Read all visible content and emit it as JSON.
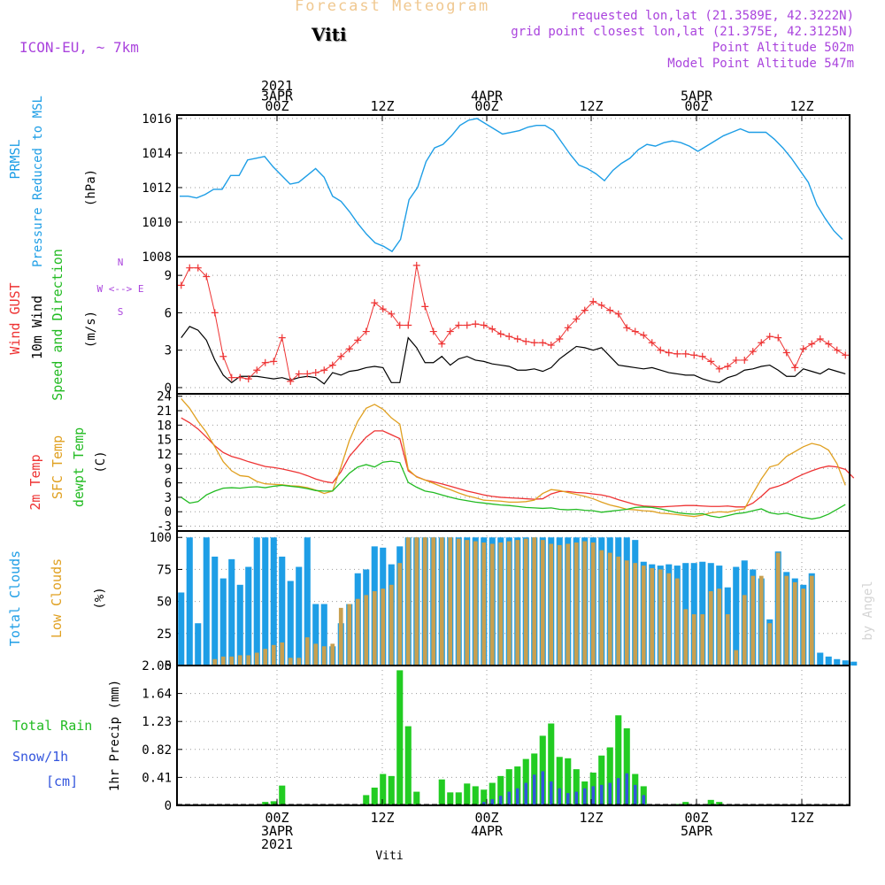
{
  "header": {
    "title": "Forecast Meteogram",
    "location": "Viti",
    "model": "ICON-EU, ~ 7km",
    "requested": "requested lon,lat (21.3589E, 42.3222N)",
    "gridpoint": "grid point closest lon,lat (21.375E, 42.3125N)",
    "point_altitude": "Point Altitude 502m",
    "model_altitude": "Model Point Altitude 547m"
  },
  "footer": {
    "location": "Viti",
    "watermark": "by Angel"
  },
  "colors": {
    "pressure": "#1e9ee6",
    "gust": "#ee3333",
    "wind": "#000000",
    "t2m": "#ee3333",
    "sfc": "#e0a020",
    "dew": "#22bb22",
    "total_clouds": "#1e9ee6",
    "low_clouds": "#c8a050",
    "rain": "#22cc22",
    "snow": "#3355dd",
    "label_purple": "#aa44dd",
    "label_green": "#22bb22",
    "label_cyan": "#1e9ee6"
  },
  "chart_data": [
    {
      "type": "line",
      "panel_labels": [
        "PRMSL",
        "Pressure Reduced to MSL",
        "(hPa)"
      ],
      "ylim": [
        1008,
        1016.2
      ],
      "yticks": [
        1008,
        1010,
        1012,
        1014,
        1016
      ],
      "x": [
        0,
        1,
        2,
        3,
        4,
        5,
        6,
        7,
        8,
        9,
        10,
        11,
        12,
        13,
        14,
        15,
        16,
        17,
        18,
        19,
        20,
        21,
        22,
        23,
        24,
        25,
        26,
        27,
        28,
        29,
        30,
        31,
        32,
        33,
        34,
        35,
        36,
        37,
        38,
        39,
        40,
        41,
        42,
        43,
        44,
        45,
        46,
        47,
        48,
        49,
        50,
        51,
        52,
        53,
        54,
        55,
        56,
        57,
        58,
        59,
        60,
        61,
        62,
        63,
        64,
        65,
        66,
        67,
        68,
        69,
        70,
        71,
        72,
        73,
        74,
        75,
        76,
        77,
        78
      ],
      "series": [
        {
          "values": [
            1011.5,
            1011.5,
            1011.4,
            1011.6,
            1011.9,
            1011.9,
            1012.7,
            1012.7,
            1013.6,
            1013.7,
            1013.8,
            1013.2,
            1012.7,
            1012.2,
            1012.3,
            1012.7,
            1013.1,
            1012.6,
            1011.5,
            1011.2,
            1010.6,
            1009.9,
            1009.3,
            1008.8,
            1008.6,
            1008.3,
            1009.0,
            1011.3,
            1012.0,
            1013.5,
            1014.3,
            1014.5,
            1015.0,
            1015.6,
            1015.9,
            1016.0,
            1015.7,
            1015.4,
            1015.1,
            1015.2,
            1015.3,
            1015.5,
            1015.6,
            1015.6,
            1015.3,
            1014.6,
            1013.9,
            1013.3,
            1013.1,
            1012.8,
            1012.4,
            1013.0,
            1013.4,
            1013.7,
            1014.2,
            1014.5,
            1014.4,
            1014.6,
            1014.7,
            1014.6,
            1014.4,
            1014.1,
            1014.4,
            1014.7,
            1015.0,
            1015.2,
            1015.4,
            1015.2,
            1015.2,
            1015.2,
            1014.8,
            1014.3,
            1013.7,
            1013.0,
            1012.3,
            1011.0,
            1010.2,
            1009.5,
            1009.0
          ]
        }
      ]
    },
    {
      "type": "line",
      "panel_labels": [
        "Wind GUST",
        "10m Wind",
        "Speed and Direction",
        "(m/s)"
      ],
      "compass": [
        "N",
        "S",
        "W <--> E"
      ],
      "ylim": [
        -0.5,
        10.5
      ],
      "yticks": [
        0,
        3,
        6,
        9
      ],
      "series": [
        {
          "name": "Wind GUST",
          "values": [
            8.2,
            9.6,
            9.6,
            8.9,
            6.0,
            2.5,
            0.8,
            0.8,
            0.7,
            1.4,
            2.0,
            2.1,
            4.0,
            0.5,
            1.1,
            1.1,
            1.2,
            1.4,
            1.8,
            2.5,
            3.1,
            3.8,
            4.5,
            6.8,
            6.3,
            5.9,
            5.0,
            5.0,
            9.8,
            6.5,
            4.5,
            3.5,
            4.5,
            5.0,
            5.0,
            5.1,
            5.0,
            4.7,
            4.3,
            4.1,
            3.9,
            3.7,
            3.6,
            3.6,
            3.4,
            3.9,
            4.8,
            5.5,
            6.2,
            6.9,
            6.6,
            6.2,
            5.9,
            4.8,
            4.5,
            4.2,
            3.6,
            3.0,
            2.8,
            2.7,
            2.7,
            2.6,
            2.5,
            2.1,
            1.5,
            1.7,
            2.2,
            2.2,
            2.9,
            3.6,
            4.1,
            4.0,
            2.8,
            1.6,
            3.1,
            3.5,
            3.9,
            3.5,
            3.0,
            2.6
          ]
        },
        {
          "name": "10m Wind",
          "values": [
            4.0,
            4.9,
            4.6,
            3.8,
            2.2,
            1.0,
            0.4,
            0.9,
            0.9,
            0.9,
            0.8,
            0.7,
            0.8,
            0.6,
            0.8,
            0.9,
            0.8,
            0.3,
            1.2,
            1.0,
            1.3,
            1.4,
            1.6,
            1.7,
            1.6,
            0.4,
            0.4,
            4.0,
            3.2,
            2.0,
            2.0,
            2.5,
            1.8,
            2.3,
            2.5,
            2.2,
            2.1,
            1.9,
            1.8,
            1.7,
            1.4,
            1.4,
            1.5,
            1.3,
            1.6,
            2.3,
            2.8,
            3.3,
            3.2,
            3.0,
            3.2,
            2.5,
            1.8,
            1.7,
            1.6,
            1.5,
            1.6,
            1.4,
            1.2,
            1.1,
            1.0,
            1.0,
            0.7,
            0.5,
            0.4,
            0.8,
            1.0,
            1.4,
            1.5,
            1.7,
            1.8,
            1.4,
            0.9,
            0.9,
            1.5,
            1.3,
            1.1,
            1.5,
            1.3,
            1.1
          ]
        }
      ]
    },
    {
      "type": "line",
      "panel_labels": [
        "2m Temp",
        "SFC Temp",
        "dewpt Temp",
        "(C)"
      ],
      "ylim": [
        -4,
        24.5
      ],
      "yticks": [
        -3,
        0,
        3,
        6,
        9,
        12,
        15,
        18,
        21,
        24
      ],
      "series": [
        {
          "name": "2m Temp",
          "values": [
            19.5,
            18.5,
            17.2,
            15.5,
            13.7,
            12.3,
            11.5,
            11.0,
            10.4,
            9.9,
            9.4,
            9.2,
            8.9,
            8.5,
            8.1,
            7.5,
            6.8,
            6.3,
            6.0,
            8.3,
            11.5,
            13.5,
            15.5,
            16.8,
            16.8,
            16.0,
            15.2,
            8.5,
            7.3,
            6.6,
            6.2,
            5.8,
            5.3,
            4.8,
            4.3,
            3.9,
            3.5,
            3.2,
            3.0,
            2.9,
            2.8,
            2.7,
            2.6,
            2.7,
            3.7,
            4.2,
            4.2,
            4.0,
            3.9,
            3.7,
            3.5,
            3.1,
            2.5,
            2.0,
            1.5,
            1.2,
            1.1,
            1.0,
            1.1,
            1.2,
            1.3,
            1.3,
            1.2,
            1.1,
            1.1,
            1.2,
            1.0,
            1.0,
            1.8,
            3.2,
            4.8,
            5.3,
            6.0,
            7.0,
            7.8,
            8.5,
            9.1,
            9.5,
            9.3,
            8.8,
            7.0
          ]
        },
        {
          "name": "SFC Temp",
          "values": [
            23.5,
            21.5,
            18.8,
            16.5,
            13.5,
            10.4,
            8.5,
            7.5,
            7.3,
            6.3,
            5.8,
            5.7,
            5.6,
            5.4,
            5.3,
            5.0,
            4.5,
            3.8,
            4.3,
            9.3,
            14.8,
            18.8,
            21.5,
            22.3,
            21.3,
            19.5,
            18.2,
            8.8,
            7.2,
            6.6,
            5.9,
            5.2,
            4.6,
            3.9,
            3.3,
            2.9,
            2.4,
            2.3,
            2.2,
            2.0,
            2.0,
            2.1,
            2.4,
            3.8,
            4.6,
            4.4,
            4.0,
            3.6,
            3.2,
            2.7,
            2.0,
            1.4,
            1.0,
            0.5,
            0.4,
            0.2,
            0.1,
            -0.3,
            -0.4,
            -0.6,
            -0.8,
            -1.0,
            -0.7,
            -0.2,
            0.0,
            -0.1,
            0.3,
            0.6,
            3.8,
            6.8,
            9.3,
            9.8,
            11.5,
            12.5,
            13.5,
            14.2,
            13.8,
            12.8,
            10.0,
            5.5
          ]
        },
        {
          "name": "dewpt Temp",
          "values": [
            3.0,
            1.8,
            2.1,
            3.5,
            4.3,
            4.9,
            5.0,
            4.9,
            5.1,
            5.2,
            5.0,
            5.3,
            5.5,
            5.3,
            5.1,
            4.8,
            4.4,
            4.3,
            4.3,
            6.1,
            8.0,
            9.3,
            9.8,
            9.3,
            10.3,
            10.5,
            10.2,
            6.1,
            5.1,
            4.3,
            4.0,
            3.5,
            3.0,
            2.6,
            2.3,
            2.0,
            1.8,
            1.6,
            1.4,
            1.3,
            1.1,
            0.9,
            0.8,
            0.7,
            0.8,
            0.5,
            0.4,
            0.5,
            0.3,
            0.2,
            -0.1,
            0.1,
            0.3,
            0.5,
            0.9,
            1.0,
            0.9,
            0.6,
            0.2,
            -0.2,
            -0.4,
            -0.5,
            -0.4,
            -0.9,
            -1.2,
            -0.8,
            -0.4,
            -0.2,
            0.2,
            0.6,
            -0.2,
            -0.5,
            -0.3,
            -0.8,
            -1.2,
            -1.5,
            -1.2,
            -0.5,
            0.5,
            1.5
          ]
        }
      ]
    },
    {
      "type": "bar",
      "panel_labels": [
        "Total Clouds",
        "Low Clouds",
        "(%)"
      ],
      "ylim": [
        0,
        105
      ],
      "yticks": [
        0,
        25,
        50,
        75,
        100
      ],
      "series": [
        {
          "name": "Total Clouds",
          "values": [
            57,
            100,
            33,
            100,
            85,
            68,
            83,
            63,
            77,
            100,
            100,
            100,
            85,
            66,
            77,
            100,
            48,
            48,
            15,
            33,
            48,
            72,
            75,
            93,
            92,
            79,
            93,
            100,
            100,
            100,
            100,
            100,
            100,
            100,
            100,
            100,
            100,
            100,
            100,
            100,
            100,
            100,
            100,
            100,
            100,
            100,
            100,
            100,
            100,
            100,
            100,
            100,
            100,
            100,
            98,
            81,
            79,
            78,
            79,
            78,
            80,
            80,
            81,
            80,
            78,
            61,
            77,
            82,
            75,
            68,
            36,
            89,
            73,
            68,
            63,
            72,
            10,
            7,
            5,
            4,
            3
          ]
        },
        {
          "name": "Low Clouds",
          "values": [
            0,
            0,
            0,
            0,
            5,
            7,
            7,
            8,
            8,
            10,
            13,
            16,
            18,
            6,
            6,
            22,
            17,
            15,
            17,
            45,
            48,
            52,
            55,
            58,
            60,
            63,
            80,
            100,
            100,
            100,
            100,
            100,
            100,
            99,
            98,
            97,
            96,
            95,
            96,
            97,
            98,
            99,
            100,
            98,
            95,
            94,
            95,
            96,
            97,
            96,
            90,
            88,
            85,
            82,
            80,
            78,
            76,
            75,
            72,
            68,
            44,
            40,
            40,
            58,
            60,
            40,
            12,
            55,
            70,
            70,
            33,
            88,
            70,
            65,
            60,
            70,
            0,
            0,
            0,
            0,
            0
          ]
        }
      ]
    },
    {
      "type": "bar",
      "panel_labels": [
        "Total Rain",
        "Snow/1h",
        "[cm]",
        "1hr Precip (mm)"
      ],
      "ylim": [
        0,
        2.05
      ],
      "yticks": [
        "0",
        "0.41",
        "0.82",
        "1.23",
        "1.64",
        "2.05"
      ],
      "series": [
        {
          "name": "Total Rain",
          "values": [
            0,
            0,
            0,
            0,
            0,
            0,
            0,
            0,
            0,
            0,
            0.05,
            0.06,
            0.29,
            0,
            0,
            0,
            0,
            0,
            0,
            0,
            0,
            0,
            0.15,
            0.26,
            0.46,
            0.43,
            1.98,
            1.16,
            0.2,
            0,
            0,
            0.38,
            0.19,
            0.19,
            0.32,
            0.28,
            0.23,
            0.33,
            0.43,
            0.53,
            0.57,
            0.68,
            0.76,
            1.02,
            1.2,
            0.71,
            0.69,
            0.53,
            0.35,
            0.48,
            0.73,
            0.85,
            1.32,
            1.13,
            0.46,
            0.28,
            0,
            0,
            0,
            0.02,
            0.05,
            0,
            0,
            0.08,
            0.05,
            0,
            0,
            0,
            0,
            0,
            0,
            0,
            0,
            0,
            0,
            0,
            0,
            0,
            0,
            0,
            0
          ]
        },
        {
          "name": "Snow/1h",
          "values": [
            0,
            0,
            0,
            0,
            0,
            0,
            0,
            0,
            0,
            0,
            0,
            0,
            0,
            0,
            0,
            0,
            0,
            0,
            0,
            0,
            0,
            0,
            0,
            0,
            0,
            0,
            0,
            0,
            0,
            0,
            0,
            0,
            0,
            0,
            0,
            0.02,
            0.05,
            0.09,
            0.14,
            0.2,
            0.25,
            0.33,
            0.45,
            0.5,
            0.35,
            0.25,
            0.18,
            0.2,
            0.25,
            0.28,
            0.3,
            0.33,
            0.4,
            0.47,
            0.3,
            0.15,
            0,
            0,
            0,
            0,
            0,
            0,
            0,
            0,
            0,
            0,
            0,
            0,
            0,
            0,
            0,
            0,
            0,
            0,
            0,
            0,
            0,
            0,
            0,
            0
          ]
        }
      ]
    }
  ],
  "time_axis": {
    "top": [
      {
        "lines": [
          "2021",
          "3APR",
          "00Z"
        ]
      },
      {
        "lines": [
          "12Z"
        ]
      },
      {
        "lines": [
          "4APR",
          "00Z"
        ]
      },
      {
        "lines": [
          "12Z"
        ]
      },
      {
        "lines": [
          "5APR",
          "00Z"
        ]
      },
      {
        "lines": [
          "12Z"
        ]
      }
    ],
    "bottom": [
      {
        "lines": [
          "00Z",
          "3APR",
          "2021"
        ]
      },
      {
        "lines": [
          "12Z"
        ]
      },
      {
        "lines": [
          "00Z",
          "4APR"
        ]
      },
      {
        "lines": [
          "12Z"
        ]
      },
      {
        "lines": [
          "00Z",
          "5APR"
        ]
      },
      {
        "lines": [
          "12Z"
        ]
      }
    ]
  }
}
